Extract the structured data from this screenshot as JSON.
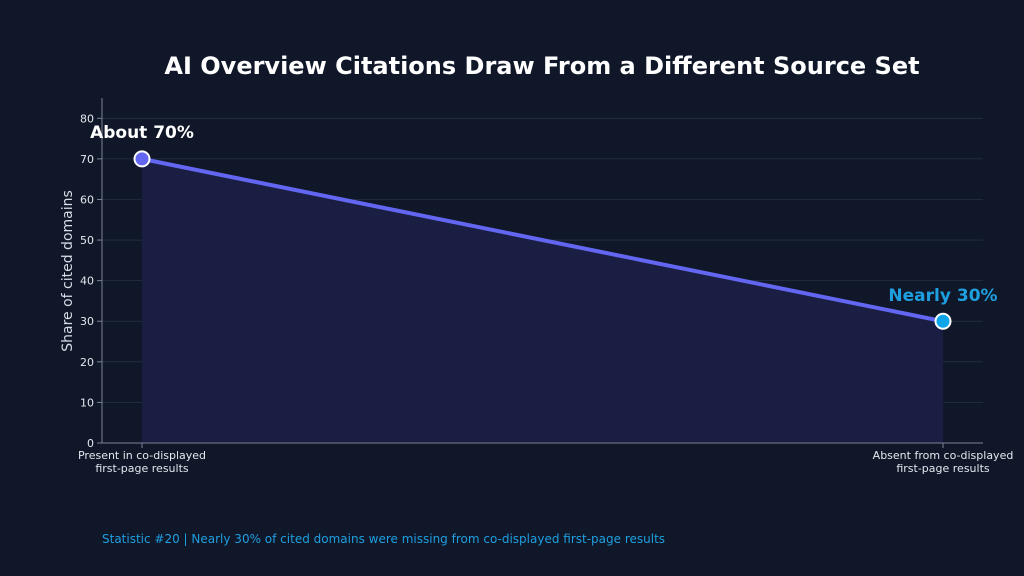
{
  "chart_data": {
    "type": "line",
    "title": "AI Overview Citations Draw From a Different Source Set",
    "xlabel": "",
    "ylabel": "Share of cited domains",
    "categories": [
      [
        "Present in co-displayed",
        "first-page results"
      ],
      [
        "Absent from co-displayed",
        "first-page results"
      ]
    ],
    "values": [
      70,
      30
    ],
    "ylim": [
      0,
      85
    ],
    "yticks": [
      0,
      10,
      20,
      30,
      40,
      50,
      60,
      70,
      80
    ],
    "grid": true,
    "annotations": [
      {
        "text": "About 70%",
        "index": 0,
        "color": "#ffffff"
      },
      {
        "text": "Nearly 30%",
        "index": 1,
        "color": "#1e9fe0"
      }
    ],
    "colors": {
      "line": "#6366f1",
      "area": "#1b1f45",
      "point_first": "#6366f1",
      "point_last": "#0ea5e9",
      "axis": "#7b8394",
      "grid": "#243047"
    }
  },
  "footer": {
    "text": "Statistic #20  |  Nearly 30% of cited domains were missing from co-displayed first-page results"
  }
}
